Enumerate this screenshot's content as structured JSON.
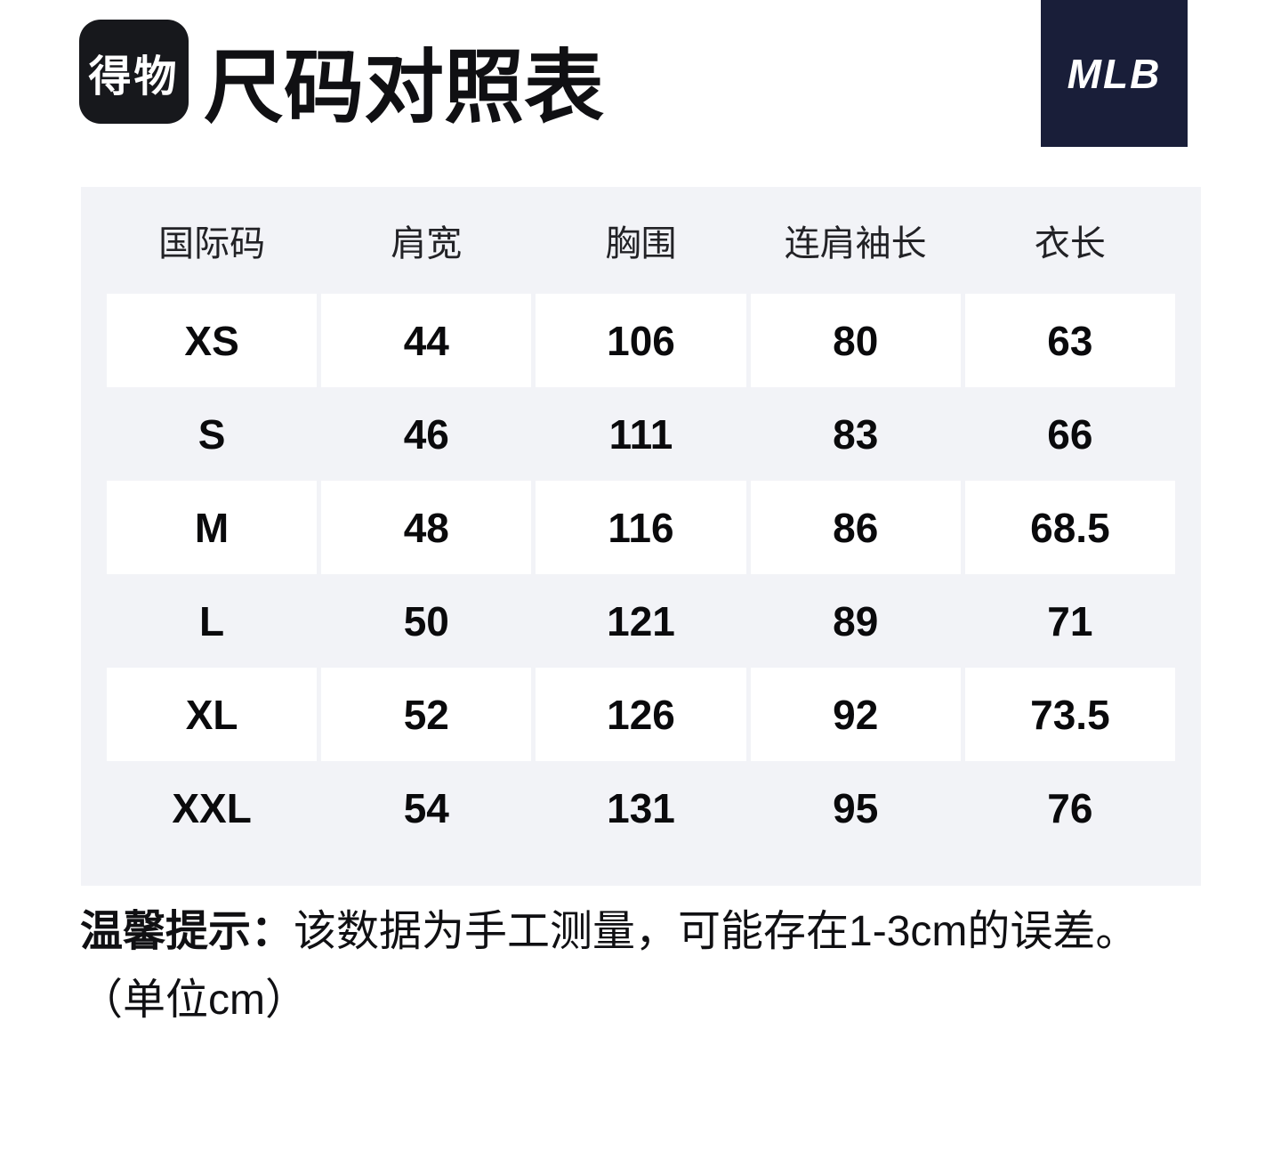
{
  "header": {
    "logo_text": "得物",
    "title": "尺码对照表",
    "brand": "MLB"
  },
  "colors": {
    "table_background": "#f2f3f7",
    "cell_background": "#ffffff",
    "dewu_logo_background": "#17181c",
    "mlb_logo_background": "#191e39",
    "text": "#101013"
  },
  "table": {
    "columns": [
      "国际码",
      "肩宽",
      "胸围",
      "连肩袖长",
      "衣长"
    ],
    "rows": [
      [
        "XS",
        "44",
        "106",
        "80",
        "63"
      ],
      [
        "S",
        "46",
        "111",
        "83",
        "66"
      ],
      [
        "M",
        "48",
        "116",
        "86",
        "68.5"
      ],
      [
        "L",
        "50",
        "121",
        "89",
        "71"
      ],
      [
        "XL",
        "52",
        "126",
        "92",
        "73.5"
      ],
      [
        "XXL",
        "54",
        "131",
        "95",
        "76"
      ]
    ]
  },
  "footnote": {
    "prefix": "温馨提示：",
    "line1": "该数据为手工测量，可能存在1-3cm的误差。",
    "line2": "（单位cm）"
  }
}
